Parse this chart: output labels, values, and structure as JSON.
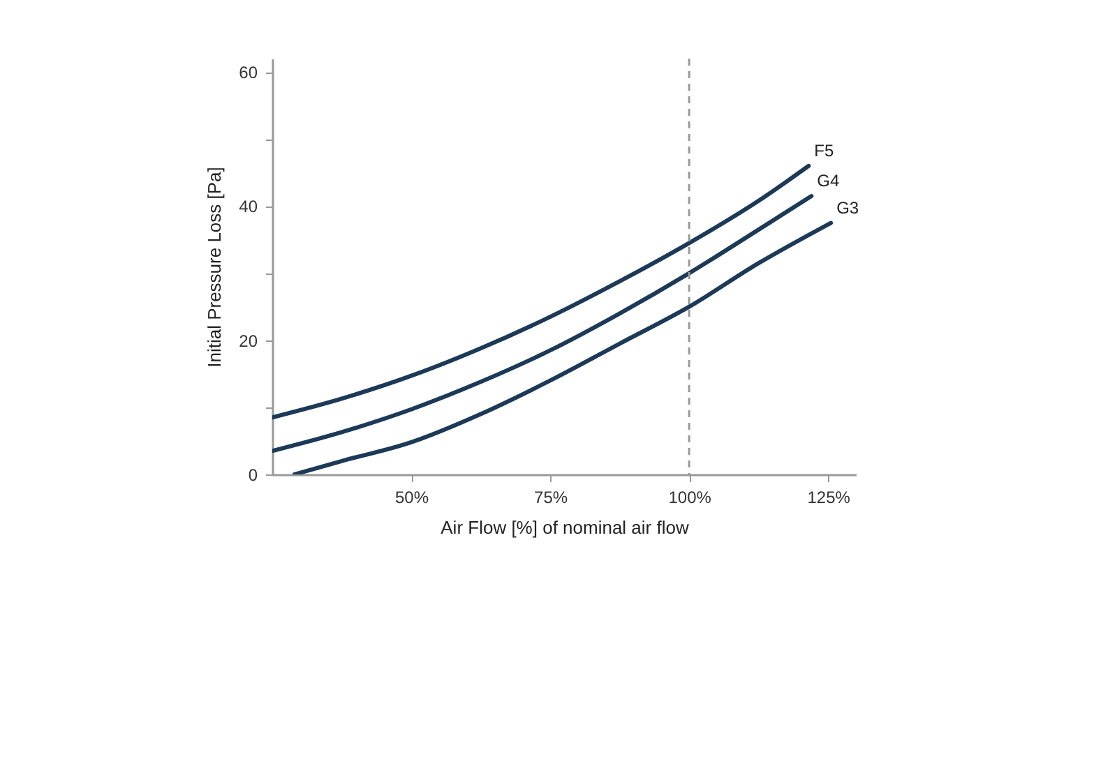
{
  "chart_data": {
    "type": "line",
    "xlabel": "Air Flow [%] of nominal air flow",
    "ylabel": "Initial Pressure Loss [Pa]",
    "xlim": [
      25,
      130
    ],
    "ylim": [
      0,
      62
    ],
    "xticks": [
      {
        "value": 50,
        "label": "50%"
      },
      {
        "value": 75,
        "label": "75%"
      },
      {
        "value": 100,
        "label": "100%"
      },
      {
        "value": 125,
        "label": "125%"
      }
    ],
    "yticks": [
      0,
      {
        "value": 10,
        "label": null
      },
      20,
      {
        "value": 30,
        "label": null
      },
      40,
      {
        "value": 50,
        "label": null
      },
      60
    ],
    "grid": false,
    "line_style": "solid",
    "ref_lines": [
      {
        "axis": "x",
        "value": 100,
        "color": "#999999",
        "line_style": "dashed"
      }
    ],
    "series": [
      {
        "name": "F5",
        "color": "#1c3a57",
        "x": [
          25,
          37.5,
          50,
          62.5,
          75,
          87.5,
          100,
          112.5,
          121.5
        ],
        "values": [
          8.5,
          11.3,
          14.7,
          18.8,
          23.5,
          28.8,
          34.5,
          40.8,
          46
        ]
      },
      {
        "name": "G4",
        "color": "#1c3a57",
        "x": [
          25,
          37.5,
          50,
          62.5,
          75,
          87.5,
          100,
          112.5,
          122
        ],
        "values": [
          3.5,
          6.3,
          9.7,
          13.8,
          18.5,
          24,
          30,
          36.5,
          41.5
        ]
      },
      {
        "name": "G3",
        "color": "#1c3a57",
        "x": [
          29,
          37.5,
          50,
          62.5,
          75,
          87.5,
          100,
          112.5,
          125.5
        ],
        "values": [
          0,
          2,
          4.8,
          9,
          14,
          19.5,
          25,
          31.5,
          37.5
        ]
      }
    ]
  }
}
